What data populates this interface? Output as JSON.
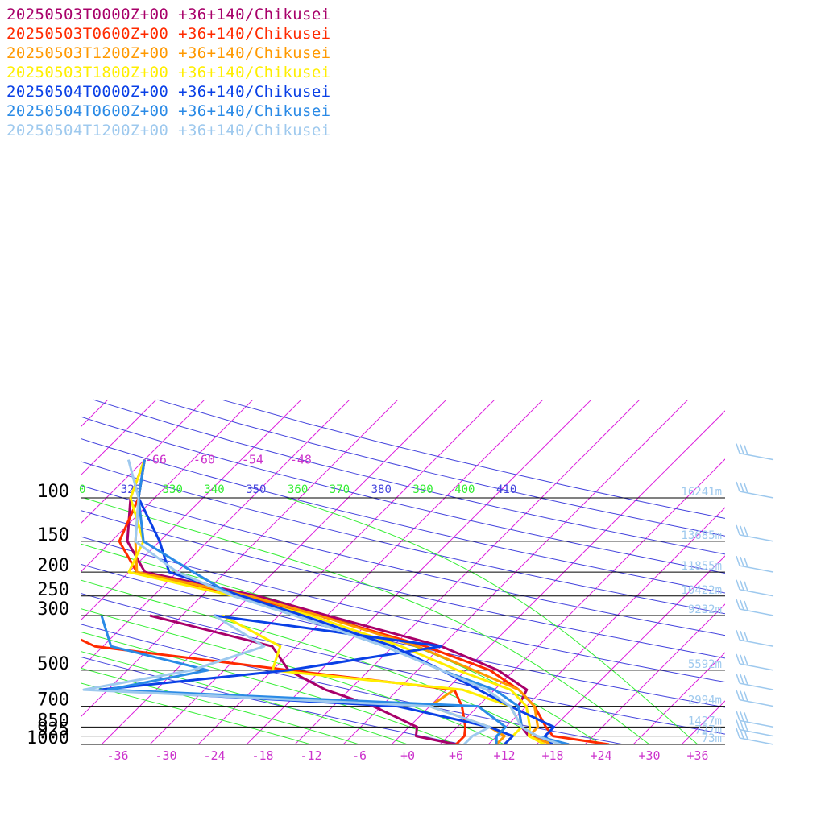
{
  "chart_data": {
    "type": "line",
    "title": "",
    "xlabel": "",
    "ylabel": "",
    "legend_placement": "top-left",
    "x_units": "degC",
    "y_units": "hPa",
    "xlim": [
      -40,
      40
    ],
    "ylim": [
      1000,
      100
    ],
    "y_scale": "log",
    "skew": "skew-T",
    "pressure_levels": [
      100,
      150,
      200,
      250,
      300,
      500,
      700,
      850,
      925,
      1000
    ],
    "pressure_tick_labels": [
      "100",
      "150",
      "200",
      "250",
      "300",
      "500",
      "700",
      "850",
      "925",
      "1000"
    ],
    "temp_ticks": [
      -36,
      -30,
      -24,
      -18,
      -12,
      -6,
      0,
      6,
      12,
      18,
      24,
      30,
      36
    ],
    "temp_tick_labels": [
      "-36",
      "-30",
      "-24",
      "-18",
      "-12",
      "-6",
      "+0",
      "+6",
      "+12",
      "+18",
      "+24",
      "+30",
      "+36"
    ],
    "upper_temp_labels": [
      "-66",
      "-60",
      "-54",
      "-48"
    ],
    "theta_labels": [
      "0",
      "320",
      "330",
      "340",
      "350",
      "360",
      "370",
      "380",
      "390",
      "400",
      "410"
    ],
    "height_labels": [
      {
        "p": 100,
        "text": "16241m"
      },
      {
        "p": 150,
        "text": "13685m"
      },
      {
        "p": 200,
        "text": "11855m"
      },
      {
        "p": 250,
        "text": "10422m"
      },
      {
        "p": 300,
        "text": "9232m"
      },
      {
        "p": 500,
        "text": "5592m"
      },
      {
        "p": 700,
        "text": "2994m"
      },
      {
        "p": 850,
        "text": "1427m"
      },
      {
        "p": 925,
        "text": "727m"
      },
      {
        "p": 1000,
        "text": "73m"
      }
    ],
    "wind_barb_levels": [
      70,
      100,
      150,
      200,
      250,
      300,
      400,
      500,
      600,
      700,
      850,
      925,
      1000
    ],
    "colors": {
      "isotherm": "#dd22dd",
      "dry_adiabat": "#4444dd",
      "moist_adiabat": "#33ee33",
      "isobar": "#000000",
      "axis_text": "#cc33cc",
      "height_text": "#9ec9ee",
      "barb": "#9ec9ee"
    },
    "series": [
      {
        "name": "20250503T0000Z+00 +36+140/Chikusei",
        "color": "#a8006a",
        "temperature": [
          [
            1000,
            20
          ],
          [
            925,
            14
          ],
          [
            850,
            12
          ],
          [
            700,
            9
          ],
          [
            600,
            8
          ],
          [
            500,
            2
          ],
          [
            400,
            -8
          ],
          [
            300,
            -26
          ],
          [
            250,
            -37
          ],
          [
            200,
            -54
          ],
          [
            150,
            -60
          ],
          [
            100,
            -65
          ],
          [
            70,
            -68
          ]
        ],
        "dewpoint": [
          [
            1000,
            6
          ],
          [
            925,
            0
          ],
          [
            850,
            -1
          ],
          [
            700,
            -9
          ],
          [
            600,
            -17
          ],
          [
            500,
            -24
          ],
          [
            400,
            -29
          ],
          [
            300,
            -48
          ]
        ]
      },
      {
        "name": "20250503T0600Z+00 +36+140/Chikusei",
        "color": "#ff2a00",
        "temperature": [
          [
            1000,
            25
          ],
          [
            925,
            17
          ],
          [
            850,
            15
          ],
          [
            700,
            11
          ],
          [
            600,
            7
          ],
          [
            500,
            1
          ],
          [
            400,
            -10
          ],
          [
            300,
            -27
          ],
          [
            250,
            -39
          ],
          [
            200,
            -55
          ],
          [
            150,
            -61
          ],
          [
            100,
            -64
          ],
          [
            70,
            -68
          ]
        ],
        "dewpoint": [
          [
            1000,
            6
          ],
          [
            925,
            6
          ],
          [
            850,
            5
          ],
          [
            700,
            2
          ],
          [
            600,
            -1
          ],
          [
            500,
            -24
          ],
          [
            400,
            -51
          ],
          [
            300,
            -63
          ]
        ]
      },
      {
        "name": "20250503T1200Z+00 +36+140/Chikusei",
        "color": "#ff9900",
        "temperature": [
          [
            1000,
            18
          ],
          [
            925,
            14
          ],
          [
            850,
            14
          ],
          [
            700,
            11
          ],
          [
            600,
            7
          ],
          [
            500,
            -1
          ],
          [
            400,
            -11
          ],
          [
            300,
            -27
          ],
          [
            250,
            -38
          ],
          [
            200,
            -55
          ],
          [
            150,
            -59
          ],
          [
            100,
            -64
          ],
          [
            70,
            -68
          ]
        ],
        "dewpoint": [
          [
            1000,
            11
          ],
          [
            925,
            11
          ],
          [
            850,
            8
          ],
          [
            700,
            -2
          ],
          [
            600,
            -1
          ]
        ]
      },
      {
        "name": "20250503T1800Z+00 +36+140/Chikusei",
        "color": "#ffee00",
        "temperature": [
          [
            1000,
            17
          ],
          [
            925,
            14
          ],
          [
            850,
            13
          ],
          [
            700,
            10
          ],
          [
            600,
            6
          ],
          [
            500,
            -3
          ],
          [
            400,
            -13
          ],
          [
            300,
            -28
          ],
          [
            250,
            -40
          ],
          [
            200,
            -56
          ],
          [
            150,
            -58
          ],
          [
            100,
            -65
          ],
          [
            70,
            -68
          ]
        ],
        "dewpoint": [
          [
            1000,
            12
          ],
          [
            925,
            12
          ],
          [
            850,
            12
          ],
          [
            700,
            8
          ],
          [
            600,
            0
          ],
          [
            500,
            -26
          ],
          [
            400,
            -28
          ],
          [
            300,
            -39
          ]
        ]
      },
      {
        "name": "20250504T0000Z+00 +36+140/Chikusei",
        "color": "#0a40e6",
        "temperature": [
          [
            1000,
            18
          ],
          [
            925,
            16
          ],
          [
            850,
            16
          ],
          [
            700,
            8
          ],
          [
            600,
            2
          ],
          [
            500,
            -5
          ],
          [
            400,
            -14
          ],
          [
            300,
            -29
          ],
          [
            250,
            -39
          ],
          [
            200,
            -51
          ],
          [
            150,
            -56
          ],
          [
            100,
            -64
          ],
          [
            70,
            -68
          ]
        ],
        "dewpoint": [
          [
            1000,
            12
          ],
          [
            925,
            12
          ],
          [
            850,
            8
          ],
          [
            700,
            -6
          ],
          [
            600,
            -45
          ],
          [
            500,
            -24
          ],
          [
            400,
            -8
          ],
          [
            300,
            -40
          ]
        ]
      },
      {
        "name": "20250504T0600Z+00 +36+140/Chikusei",
        "color": "#2a8ae6",
        "temperature": [
          [
            1000,
            20
          ],
          [
            925,
            15
          ],
          [
            850,
            12
          ],
          [
            700,
            9
          ],
          [
            600,
            4
          ],
          [
            500,
            -5
          ],
          [
            400,
            -15
          ],
          [
            300,
            -30
          ],
          [
            250,
            -40
          ],
          [
            200,
            -48
          ],
          [
            150,
            -58
          ],
          [
            100,
            -64
          ],
          [
            70,
            -68
          ]
        ],
        "dewpoint": [
          [
            1000,
            11
          ],
          [
            925,
            10
          ],
          [
            850,
            10
          ],
          [
            700,
            4
          ],
          [
            600,
            -44
          ],
          [
            500,
            -34
          ],
          [
            400,
            -49
          ],
          [
            300,
            -54
          ]
        ]
      },
      {
        "name": "20250504T1200Z+00 +36+140/Chikusei",
        "color": "#9ec9ee",
        "temperature": [
          [
            1000,
            19
          ],
          [
            925,
            15
          ],
          [
            850,
            12
          ],
          [
            700,
            8
          ],
          [
            600,
            3
          ],
          [
            500,
            -5
          ],
          [
            400,
            -15
          ],
          [
            300,
            -30
          ],
          [
            250,
            -40
          ],
          [
            200,
            -50
          ],
          [
            150,
            -59
          ],
          [
            100,
            -64
          ],
          [
            70,
            -70
          ]
        ],
        "dewpoint": [
          [
            1000,
            7
          ],
          [
            925,
            7
          ],
          [
            850,
            8
          ],
          [
            700,
            -2
          ],
          [
            600,
            -47
          ],
          [
            500,
            -36
          ],
          [
            400,
            -30
          ],
          [
            300,
            -40
          ]
        ]
      }
    ]
  }
}
